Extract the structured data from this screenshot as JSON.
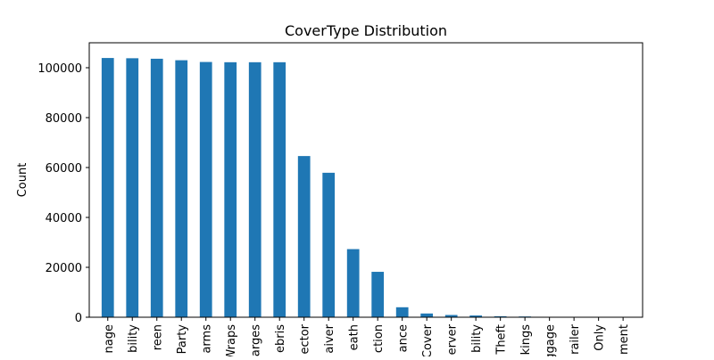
{
  "chart_data": {
    "type": "bar",
    "title": "CoverType Distribution",
    "xlabel": "",
    "ylabel": "Count",
    "ylim": [
      0,
      110000
    ],
    "yticks": [
      0,
      20000,
      40000,
      60000,
      80000,
      100000
    ],
    "ytick_labels": [
      "0",
      "20000",
      "40000",
      "60000",
      "80000",
      "100000"
    ],
    "grid": false,
    "bar_color": "#1f77b4",
    "categories": [
      "nage",
      "bility",
      "reen",
      "Party",
      "arms",
      "Wraps",
      "arges",
      "ebris",
      "ector",
      "aiver",
      "eath",
      "ction",
      "ance",
      "Cover",
      "erver",
      "bility",
      "Theft",
      "kings",
      "ggage",
      "railer",
      "Only",
      "ment"
    ],
    "values": [
      103900,
      103800,
      103600,
      103000,
      102300,
      102200,
      102200,
      102200,
      64600,
      57900,
      27300,
      18200,
      4000,
      1500,
      900,
      700,
      400,
      300,
      100,
      100,
      50,
      50
    ]
  }
}
